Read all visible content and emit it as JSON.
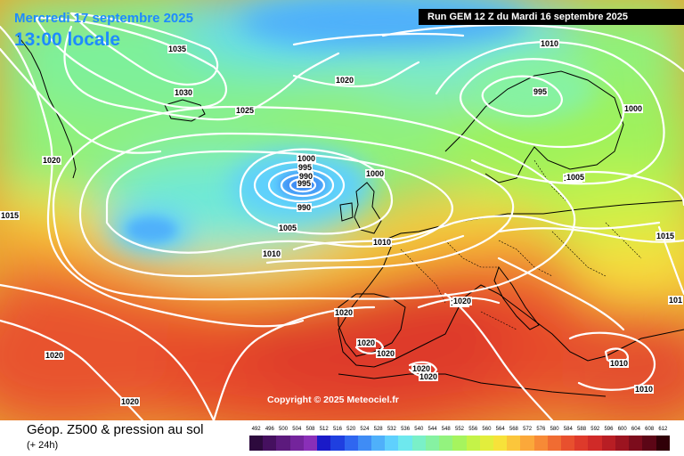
{
  "title": {
    "date": "Mercredi 17 septembre 2025",
    "local_time": "13:00 locale",
    "run": "Run GEM 12 Z du Mardi 16 septembre 2025"
  },
  "copyright": "Copyright © 2025 Meteociel.fr",
  "legend": {
    "title": "Géop. Z500 & pression au sol",
    "subtitle": "(+ 24h)",
    "ticks": [
      "492",
      "496",
      "500",
      "504",
      "508",
      "512",
      "516",
      "520",
      "524",
      "528",
      "532",
      "536",
      "540",
      "544",
      "548",
      "552",
      "556",
      "560",
      "564",
      "568",
      "572",
      "576",
      "580",
      "584",
      "588",
      "592",
      "596",
      "600",
      "604",
      "608",
      "612"
    ],
    "colors": [
      "#2d0a3d",
      "#45105f",
      "#5c1a7d",
      "#74249c",
      "#8a2fb8",
      "#1a1ac8",
      "#1f3fe0",
      "#2f66f0",
      "#3f8cf5",
      "#4fb0fa",
      "#5fd0fd",
      "#6ee8ee",
      "#7af0c8",
      "#86f2a2",
      "#93f37e",
      "#a6f45e",
      "#c4f348",
      "#e2ee3c",
      "#f7e23a",
      "#fbc63b",
      "#fba83a",
      "#f78a36",
      "#f06c32",
      "#e8502e",
      "#de3a2b",
      "#d02a28",
      "#b81e24",
      "#9c1420",
      "#7c0c1c",
      "#5c0616",
      "#300008"
    ]
  },
  "isobar_labels": [
    "1035",
    "1030",
    "1025",
    "1020",
    "1020",
    "1015",
    "1010",
    "1005",
    "1000",
    "995",
    "990",
    "995",
    "990",
    "1000",
    "1005",
    "1010",
    "1015",
    "1020",
    "1020",
    "1020",
    "1020",
    "1020",
    "1020",
    "1020",
    "1020",
    "1010",
    "1010",
    "1010",
    "995",
    "1000",
    "1005",
    "1015",
    "101"
  ]
}
